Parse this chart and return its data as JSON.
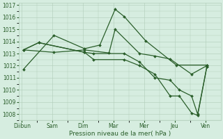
{
  "xlabel": "Pression niveau de la mer( hPa )",
  "xtick_labels": [
    "Diibun",
    "Sam",
    "Dim",
    "Mar",
    "Mer",
    "Jeu",
    "Ven"
  ],
  "xtick_pos": [
    0,
    1,
    2,
    3,
    4,
    5,
    6
  ],
  "ylim": [
    1007.5,
    1017.2
  ],
  "yticks": [
    1008,
    1009,
    1010,
    1011,
    1012,
    1013,
    1014,
    1015,
    1016,
    1017
  ],
  "xlim": [
    -0.1,
    6.5
  ],
  "background_color": "#d6ede0",
  "grid_color": "#b0ccb8",
  "line_color": "#2a5e2a",
  "lines": [
    {
      "x": [
        0.05,
        1.05,
        2.05,
        2.55,
        3.05,
        3.35,
        4.05,
        5.05,
        6.05
      ],
      "y": [
        1011.7,
        1014.5,
        1013.4,
        1013.7,
        1016.65,
        1016.05,
        1014.05,
        1012.05,
        1012.05
      ]
    },
    {
      "x": [
        0.05,
        1.05,
        2.05,
        2.85,
        3.05,
        3.85,
        4.35,
        4.85,
        5.55,
        6.05
      ],
      "y": [
        1013.3,
        1013.1,
        1013.3,
        1013.05,
        1015.0,
        1013.0,
        1012.8,
        1012.55,
        1011.3,
        1012.0
      ]
    },
    {
      "x": [
        0.05,
        0.55,
        2.05,
        2.35,
        3.35,
        3.85,
        4.35,
        4.85,
        5.15,
        5.55,
        5.75,
        6.05
      ],
      "y": [
        1013.3,
        1013.9,
        1013.1,
        1013.0,
        1013.0,
        1012.3,
        1011.0,
        1010.8,
        1010.0,
        1009.5,
        1008.0,
        1011.9
      ]
    },
    {
      "x": [
        0.05,
        0.55,
        2.05,
        2.35,
        3.35,
        3.85,
        4.35,
        4.85,
        5.15,
        5.55,
        5.75,
        6.05
      ],
      "y": [
        1013.3,
        1013.9,
        1013.1,
        1012.5,
        1012.5,
        1012.0,
        1011.3,
        1009.5,
        1009.5,
        1008.1,
        1007.9,
        1011.9
      ]
    }
  ]
}
